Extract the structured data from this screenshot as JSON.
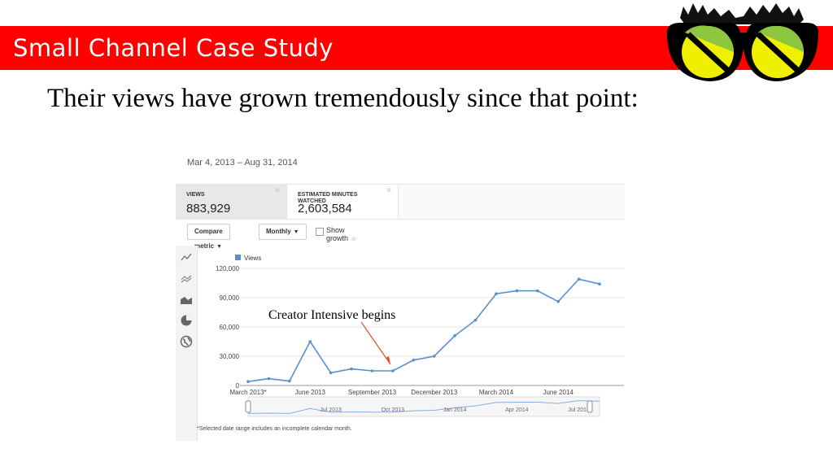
{
  "slide": {
    "title": "Small Channel Case Study",
    "subtitle": "Their views have grown tremendously since that point:",
    "banner_color": "#ff0000",
    "annotation": "Creator Intensive begins",
    "annotation_color": "#e8502a"
  },
  "analytics": {
    "date_range": "Mar 4, 2013 – Aug 31, 2014",
    "tabs": [
      {
        "label": "VIEWS",
        "value": "883,929"
      },
      {
        "label": "ESTIMATED MINUTES WATCHED",
        "value": "2,603,584"
      }
    ],
    "controls": {
      "compare_metric": "Compare metric",
      "period": "Monthly",
      "show_growth": "Show growth"
    },
    "sidebar_icons": [
      "line-chart-icon",
      "multi-line-icon",
      "stacked-area-icon",
      "pie-chart-icon",
      "globe-icon"
    ],
    "footnote": "*Selected date range includes an incomplete calendar month.",
    "navigator_labels": [
      "Jul 2013",
      "Oct 2013",
      "Jan 2014",
      "Apr 2014",
      "Jul 2014"
    ]
  },
  "chart_data": {
    "type": "line",
    "legend": "Views",
    "series": [
      {
        "name": "Views",
        "color": "#5a8fcf",
        "values": [
          4000,
          7000,
          4500,
          45000,
          13000,
          17000,
          15000,
          15000,
          26000,
          30000,
          51000,
          67000,
          94000,
          97000,
          97000,
          86000,
          109000,
          104000
        ]
      }
    ],
    "categories": [
      "Mar 2013",
      "Apr 2013",
      "May 2013",
      "Jun 2013",
      "Jul 2013",
      "Aug 2013",
      "Sep 2013",
      "Oct 2013",
      "Nov 2013",
      "Dec 2013",
      "Jan 2014",
      "Feb 2014",
      "Mar 2014",
      "Apr 2014",
      "May 2014",
      "Jun 2014",
      "Jul 2014",
      "Aug 2014"
    ],
    "xtick_labels": [
      "March 2013*",
      "June 2013",
      "September 2013",
      "December 2013",
      "March 2014",
      "June 2014"
    ],
    "xtick_index": [
      0,
      3,
      6,
      9,
      12,
      15
    ],
    "yticks": [
      0,
      30000,
      60000,
      90000,
      120000
    ],
    "ytick_labels": [
      "0",
      "30,000",
      "60,000",
      "90,000",
      "120,000"
    ],
    "ylim": [
      0,
      120000
    ],
    "legend_position": "top-left",
    "grid": true
  }
}
